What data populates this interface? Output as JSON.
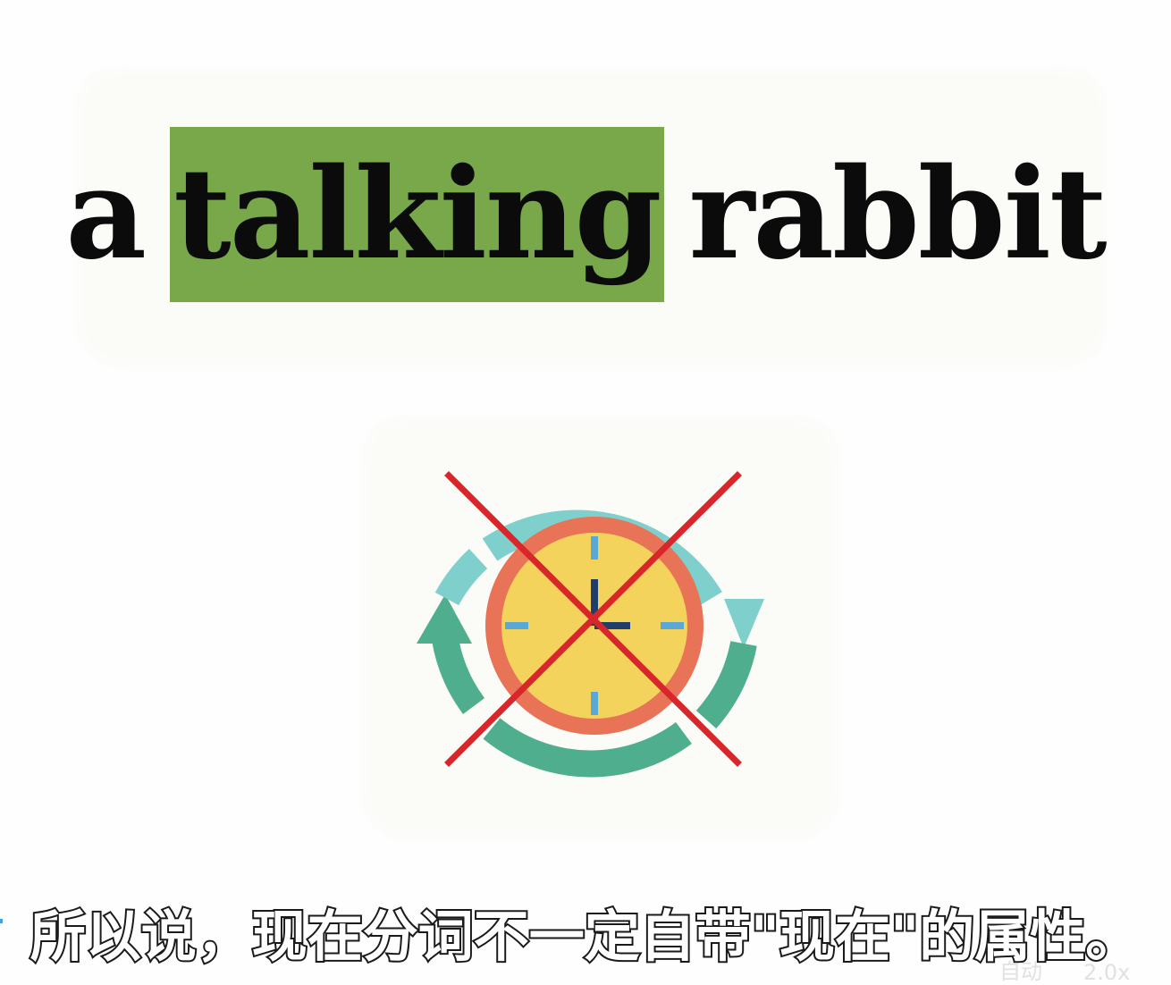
{
  "phrase": {
    "word1": "a",
    "word2": "talking",
    "word3": "rabbit",
    "highlight_color": "#78a84a"
  },
  "icon": {
    "name": "crossed-out-clock-cycle-icon",
    "colors": {
      "cycle_top": "#7fd0cc",
      "cycle_bottom": "#4fae8e",
      "clock_ring": "#e87357",
      "clock_face": "#f3d35c",
      "ticks": "#5aa8d6",
      "hands": "#1f3f6a",
      "cross": "#d8262a"
    }
  },
  "subtitle": {
    "text": "所以说，现在分词不一定自带\"现在\"的属性。"
  },
  "player": {
    "auto_label": "自动",
    "speed_label": "2.0x"
  }
}
